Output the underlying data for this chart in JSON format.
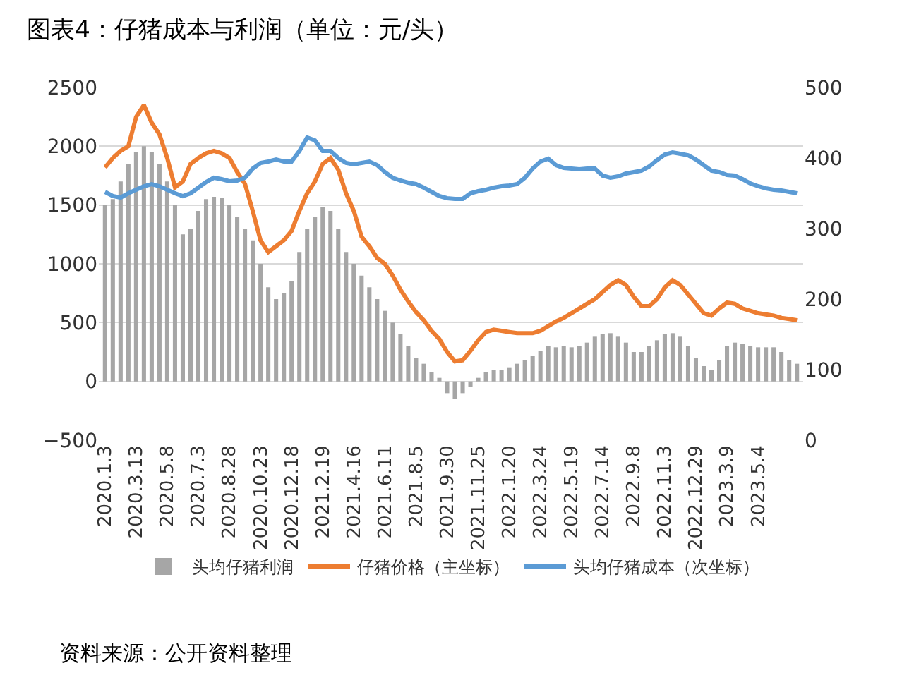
{
  "chart_data": {
    "type": "bar",
    "title": "图表4：仔猪成本与利润（单位：元/头）",
    "categories": [
      "2020.1.3",
      null,
      null,
      null,
      "2020.3.13",
      null,
      null,
      null,
      "2020.5.8",
      null,
      null,
      null,
      "2020.7.3",
      null,
      null,
      null,
      "2020.8.28",
      null,
      null,
      null,
      "2020.10.23",
      null,
      null,
      null,
      "2020.12.18",
      null,
      null,
      null,
      "2021.2.19",
      null,
      null,
      null,
      "2021.4.16",
      null,
      null,
      null,
      "2021.6.11",
      null,
      null,
      null,
      "2021.8.5",
      null,
      null,
      null,
      "2021.9.30",
      null,
      null,
      null,
      "2021.11.25",
      null,
      null,
      null,
      "2022.1.20",
      null,
      null,
      null,
      "2022.3.24",
      null,
      null,
      null,
      "2022.5.19",
      null,
      null,
      null,
      "2022.7.14",
      null,
      null,
      null,
      "2022.9.8",
      null,
      null,
      null,
      "2022.11.3",
      null,
      null,
      null,
      "2022.12.29",
      null,
      null,
      null,
      "2023.3.9",
      null,
      null,
      null,
      "2023.5.4",
      null,
      null,
      null,
      null,
      null
    ],
    "series": [
      {
        "name": "头均仔猪利润",
        "color": "#a6a6a6",
        "values": [
          1500,
          1550,
          1700,
          1850,
          1950,
          2000,
          1950,
          1850,
          1700,
          1500,
          1250,
          1300,
          1450,
          1550,
          1570,
          1560,
          1500,
          1400,
          1300,
          1200,
          1000,
          800,
          700,
          750,
          850,
          1100,
          1300,
          1400,
          1480,
          1450,
          1300,
          1100,
          1000,
          900,
          800,
          700,
          600,
          500,
          400,
          300,
          200,
          150,
          80,
          30,
          -100,
          -150,
          -100,
          -50,
          30,
          80,
          100,
          100,
          120,
          150,
          180,
          220,
          260,
          300,
          290,
          300,
          290,
          300,
          330,
          380,
          400,
          410,
          380,
          330,
          250,
          250,
          300,
          350,
          400,
          410,
          380,
          300,
          200,
          130,
          100,
          180,
          300,
          330,
          320,
          300,
          290,
          290,
          290,
          250,
          180,
          150
        ]
      },
      {
        "name": "仔猪价格（主坐标）",
        "type": "line",
        "color": "#ed7d31",
        "values": [
          1820,
          1900,
          1960,
          2000,
          2250,
          2350,
          2200,
          2100,
          1900,
          1650,
          1700,
          1850,
          1900,
          1940,
          1960,
          1940,
          1900,
          1780,
          1680,
          1450,
          1200,
          1100,
          1150,
          1200,
          1280,
          1450,
          1600,
          1700,
          1850,
          1900,
          1800,
          1600,
          1450,
          1230,
          1150,
          1050,
          1000,
          900,
          780,
          680,
          590,
          520,
          430,
          360,
          250,
          170,
          180,
          260,
          350,
          420,
          440,
          430,
          420,
          410,
          410,
          410,
          430,
          470,
          510,
          540,
          580,
          620,
          660,
          700,
          760,
          820,
          860,
          820,
          720,
          640,
          640,
          700,
          800,
          860,
          820,
          740,
          660,
          580,
          560,
          620,
          670,
          660,
          620,
          600,
          580,
          570,
          560,
          540,
          530,
          520
        ]
      },
      {
        "name": "头均仔猪成本（次坐标）",
        "type": "line",
        "axis": "y2",
        "color": "#5b9bd5",
        "values": [
          352,
          346,
          344,
          350,
          355,
          360,
          363,
          360,
          355,
          350,
          346,
          350,
          358,
          366,
          372,
          370,
          367,
          368,
          372,
          385,
          393,
          395,
          398,
          395,
          395,
          410,
          429,
          425,
          410,
          410,
          400,
          393,
          391,
          393,
          395,
          390,
          380,
          372,
          368,
          365,
          363,
          358,
          352,
          346,
          343,
          342,
          342,
          350,
          353,
          355,
          358,
          360,
          361,
          363,
          372,
          385,
          395,
          399,
          390,
          386,
          385,
          384,
          385,
          385,
          375,
          372,
          374,
          378,
          380,
          382,
          388,
          397,
          405,
          408,
          406,
          404,
          398,
          390,
          382,
          380,
          376,
          375,
          370,
          364,
          360,
          357,
          355,
          354,
          352,
          350
        ]
      }
    ],
    "ylim": [
      -500,
      2500
    ],
    "yticks": [
      {
        "value": -500,
        "label": "−500"
      },
      0,
      500,
      1000,
      1500,
      2000,
      2500
    ],
    "y2lim": [
      0,
      500
    ],
    "y2ticks": [
      0,
      100,
      200,
      300,
      400,
      500
    ],
    "grid": "y",
    "legend": "bottom",
    "annotations": [
      "资料来源：公开资料整理"
    ]
  }
}
